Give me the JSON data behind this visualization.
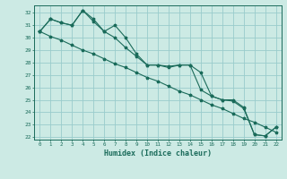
{
  "xlabel": "Humidex (Indice chaleur)",
  "ylabel": "",
  "bg_color": "#cceae4",
  "grid_color": "#99cccc",
  "line_color": "#1a6b5a",
  "xlim": [
    -0.5,
    22.5
  ],
  "ylim": [
    21.8,
    32.6
  ],
  "yticks": [
    22,
    23,
    24,
    25,
    26,
    27,
    28,
    29,
    30,
    31,
    32
  ],
  "xticks": [
    0,
    1,
    2,
    3,
    4,
    5,
    6,
    7,
    8,
    9,
    10,
    11,
    12,
    13,
    14,
    15,
    16,
    17,
    18,
    19,
    20,
    21,
    22
  ],
  "series1": [
    30.5,
    31.5,
    31.2,
    31.0,
    32.2,
    31.5,
    30.5,
    31.0,
    30.0,
    28.7,
    27.8,
    27.8,
    27.7,
    27.8,
    27.8,
    27.2,
    25.3,
    25.0,
    25.0,
    24.4,
    22.2,
    22.1,
    22.8
  ],
  "series2": [
    30.5,
    31.5,
    31.2,
    31.0,
    32.2,
    31.3,
    30.5,
    30.0,
    29.2,
    28.5,
    27.8,
    27.8,
    27.6,
    27.8,
    27.8,
    25.8,
    25.3,
    25.0,
    24.9,
    24.3,
    22.2,
    22.1,
    22.8
  ],
  "series3": [
    30.5,
    30.1,
    29.8,
    29.4,
    29.0,
    28.7,
    28.3,
    27.9,
    27.6,
    27.2,
    26.8,
    26.5,
    26.1,
    25.7,
    25.4,
    25.0,
    24.6,
    24.3,
    23.9,
    23.5,
    23.2,
    22.8,
    22.4
  ]
}
